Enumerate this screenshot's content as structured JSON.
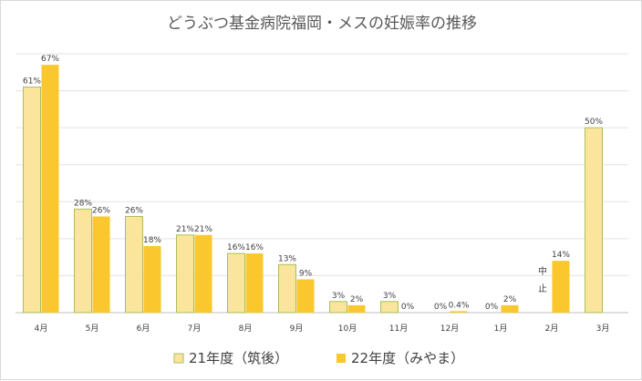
{
  "chart_data": {
    "type": "bar",
    "title": "どうぶつ基金病院福岡・メスの妊娠率の推移",
    "xlabel": "",
    "ylabel": "",
    "ylim": [
      0,
      70
    ],
    "grid": true,
    "legend_position": "bottom",
    "categories": [
      "4月",
      "5月",
      "6月",
      "7月",
      "8月",
      "9月",
      "10月",
      "11月",
      "12月",
      "1月",
      "2月",
      "3月"
    ],
    "series": [
      {
        "name": "21年度（筑後）",
        "color": "#fbe49b",
        "border": "#a9c05a",
        "values": [
          61,
          28,
          26,
          21,
          16,
          13,
          3,
          3,
          0,
          0,
          null,
          50
        ],
        "labels": [
          "61%",
          "28%",
          "26%",
          "21%",
          "16%",
          "13%",
          "3%",
          "3%",
          "0%",
          "0%",
          "",
          "50%"
        ]
      },
      {
        "name": "22年度（みやま）",
        "color": "#fac72e",
        "border": "#fac72e",
        "values": [
          67,
          26,
          18,
          21,
          16,
          9,
          2,
          0,
          0.4,
          2,
          14,
          null
        ],
        "labels": [
          "67%",
          "26%",
          "18%",
          "21%",
          "16%",
          "9%",
          "2%",
          "0%",
          "0.4%",
          "2%",
          "14%",
          ""
        ]
      }
    ],
    "annotation": {
      "category": "2月",
      "text": "中止"
    }
  }
}
